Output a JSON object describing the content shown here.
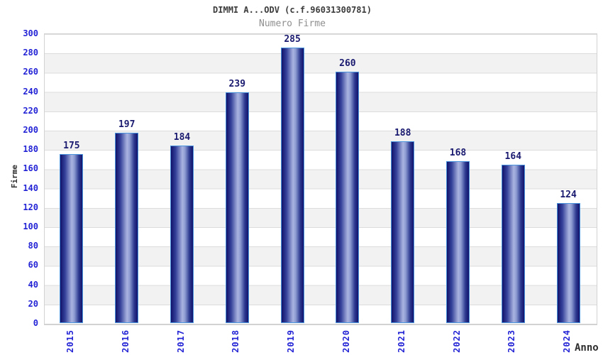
{
  "chart_data": {
    "type": "bar",
    "title": "DIMMI A...ODV (c.f.96031300781)",
    "subtitle": "Numero Firme",
    "xlabel": "Anno",
    "ylabel": "Firme",
    "categories": [
      "2015",
      "2016",
      "2017",
      "2018",
      "2019",
      "2020",
      "2021",
      "2022",
      "2023",
      "2024"
    ],
    "values": [
      175,
      197,
      184,
      239,
      285,
      260,
      188,
      168,
      164,
      124
    ],
    "ylim": [
      0,
      300
    ],
    "ytick_step": 20,
    "grid": true,
    "legend": null,
    "colors": {
      "tick_label": "#2323d6",
      "value_label": "#1a1a70",
      "title": "#3b3b3b",
      "subtitle": "#8f8f8f",
      "bar_dark": "#12126a",
      "bar_light": "#aab4e0",
      "bar_border": "#4a94dd",
      "band_gray": "#f2f2f2",
      "grid_line": "#dcdcdc",
      "plot_border": "#d2d2d2",
      "axis_title": "#2e2e2e"
    }
  }
}
